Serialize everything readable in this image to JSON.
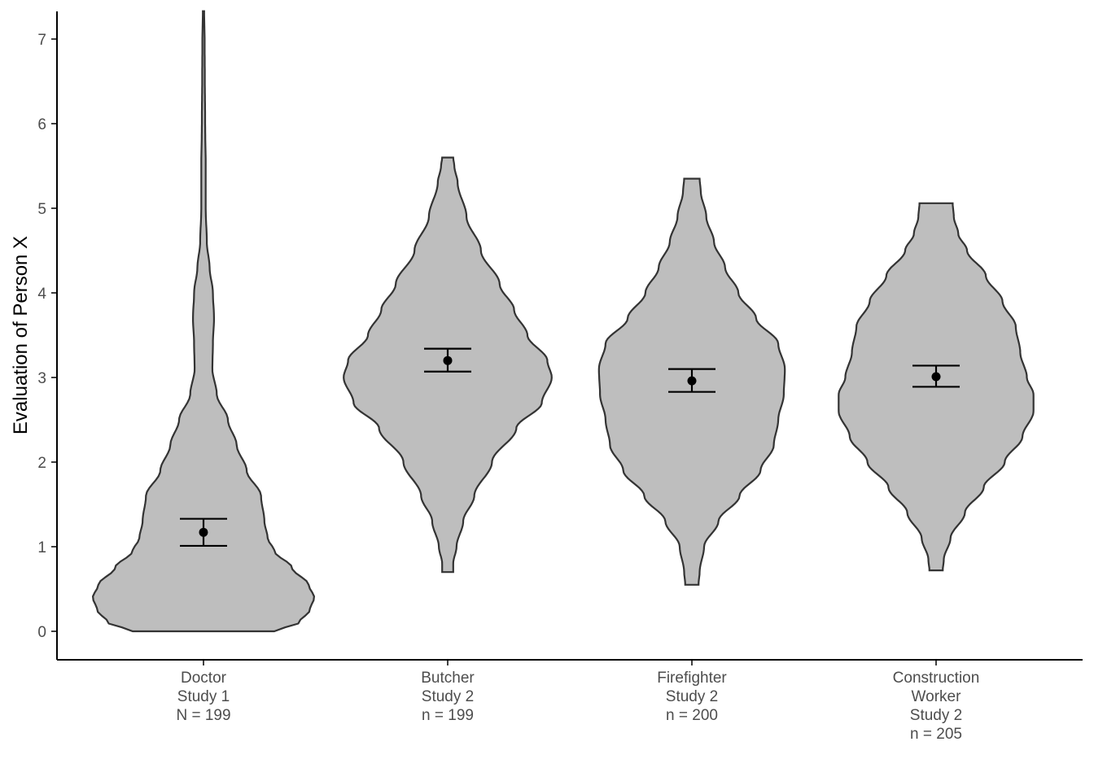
{
  "colors": {
    "violin_fill": "#bebebe",
    "violin_stroke": "#333333",
    "axis": "#000000",
    "point": "#000000",
    "tick_text": "#4d4d4d"
  },
  "chart_data": {
    "type": "violin",
    "xlabel": "",
    "ylabel": "Evaluation of Person X",
    "ylim": [
      -0.33,
      7.33
    ],
    "yticks": [
      0,
      1,
      2,
      3,
      4,
      5,
      6,
      7
    ],
    "grid": false,
    "legend": "none",
    "groups": [
      {
        "label": [
          "Doctor",
          "Study 1",
          "N = 199"
        ],
        "mean": 1.17,
        "ci_low": 1.01,
        "ci_high": 1.33,
        "ymin": 0.0,
        "ymax": 7.33,
        "density_profile": [
          [
            0.0,
            0.64
          ],
          [
            0.1,
            0.86
          ],
          [
            0.25,
            0.96
          ],
          [
            0.4,
            1.0
          ],
          [
            0.55,
            0.95
          ],
          [
            0.75,
            0.8
          ],
          [
            0.95,
            0.64
          ],
          [
            1.1,
            0.58
          ],
          [
            1.3,
            0.55
          ],
          [
            1.6,
            0.52
          ],
          [
            1.9,
            0.39
          ],
          [
            2.2,
            0.3
          ],
          [
            2.5,
            0.22
          ],
          [
            2.8,
            0.12
          ],
          [
            3.1,
            0.08
          ],
          [
            3.4,
            0.085
          ],
          [
            3.7,
            0.095
          ],
          [
            4.0,
            0.085
          ],
          [
            4.3,
            0.055
          ],
          [
            4.6,
            0.03
          ],
          [
            5.0,
            0.02
          ],
          [
            5.5,
            0.02
          ],
          [
            6.0,
            0.015
          ],
          [
            6.5,
            0.012
          ],
          [
            7.0,
            0.01
          ],
          [
            7.33,
            0.006
          ]
        ]
      },
      {
        "label": [
          "Butcher",
          "Study 2",
          "n = 199"
        ],
        "mean": 3.2,
        "ci_low": 3.07,
        "ci_high": 3.34,
        "ymin": 0.7,
        "ymax": 5.6,
        "density_profile": [
          [
            0.7,
            0.05
          ],
          [
            0.8,
            0.05
          ],
          [
            1.0,
            0.08
          ],
          [
            1.3,
            0.14
          ],
          [
            1.6,
            0.24
          ],
          [
            2.0,
            0.4
          ],
          [
            2.4,
            0.62
          ],
          [
            2.7,
            0.85
          ],
          [
            3.0,
            0.94
          ],
          [
            3.2,
            0.9
          ],
          [
            3.5,
            0.72
          ],
          [
            3.8,
            0.6
          ],
          [
            4.1,
            0.47
          ],
          [
            4.5,
            0.3
          ],
          [
            4.9,
            0.17
          ],
          [
            5.3,
            0.09
          ],
          [
            5.5,
            0.06
          ],
          [
            5.6,
            0.05
          ]
        ]
      },
      {
        "label": [
          "Firefighter",
          "Study 2",
          "n = 200"
        ],
        "mean": 2.96,
        "ci_low": 2.83,
        "ci_high": 3.1,
        "ymin": 0.55,
        "ymax": 5.35,
        "density_profile": [
          [
            0.55,
            0.06
          ],
          [
            0.7,
            0.07
          ],
          [
            1.0,
            0.11
          ],
          [
            1.3,
            0.24
          ],
          [
            1.6,
            0.43
          ],
          [
            1.9,
            0.62
          ],
          [
            2.2,
            0.74
          ],
          [
            2.5,
            0.78
          ],
          [
            2.8,
            0.83
          ],
          [
            3.1,
            0.84
          ],
          [
            3.4,
            0.78
          ],
          [
            3.7,
            0.58
          ],
          [
            4.0,
            0.42
          ],
          [
            4.3,
            0.3
          ],
          [
            4.6,
            0.2
          ],
          [
            4.9,
            0.13
          ],
          [
            5.2,
            0.08
          ],
          [
            5.35,
            0.07
          ]
        ]
      },
      {
        "label": [
          "Construction",
          "Worker",
          "Study 2",
          "n = 205"
        ],
        "mean": 3.01,
        "ci_low": 2.89,
        "ci_high": 3.14,
        "ymin": 0.72,
        "ymax": 5.06,
        "density_profile": [
          [
            0.72,
            0.06
          ],
          [
            0.85,
            0.07
          ],
          [
            1.1,
            0.13
          ],
          [
            1.4,
            0.26
          ],
          [
            1.7,
            0.43
          ],
          [
            2.0,
            0.62
          ],
          [
            2.3,
            0.78
          ],
          [
            2.6,
            0.88
          ],
          [
            2.8,
            0.88
          ],
          [
            3.0,
            0.82
          ],
          [
            3.3,
            0.76
          ],
          [
            3.6,
            0.72
          ],
          [
            3.9,
            0.6
          ],
          [
            4.2,
            0.45
          ],
          [
            4.5,
            0.28
          ],
          [
            4.7,
            0.2
          ],
          [
            4.9,
            0.16
          ],
          [
            5.06,
            0.15
          ]
        ]
      }
    ]
  }
}
